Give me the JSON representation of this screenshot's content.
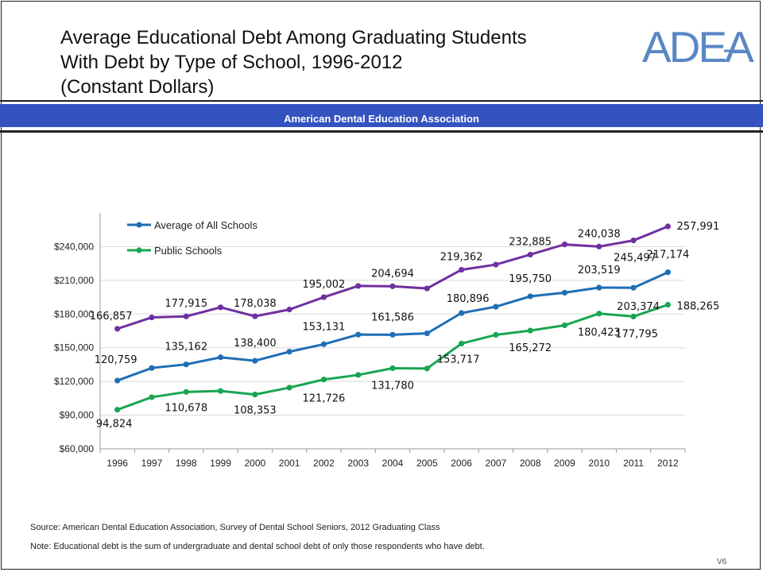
{
  "title_lines": [
    "Average Educational Debt Among Graduating Students",
    "With Debt by Type of School, 1996-2012",
    "(Constant Dollars)"
  ],
  "logo_text": "ADEA",
  "banner": "American Dental Education Association",
  "source": "Source: American Dental Education Association, Survey of Dental School Seniors, 2012 Graduating Class",
  "note": "Note: Educational debt is the sum of undergraduate and dental school debt of only those respondents who have debt.",
  "slide_code": "V6",
  "colors": {
    "banner": "#3553c0",
    "logo": "#5b87c4",
    "private": "#7030a0",
    "all": "#1f6eb5",
    "public": "#18a552"
  },
  "chart_data": {
    "type": "line",
    "x": [
      "1996",
      "1997",
      "1998",
      "1999",
      "2000",
      "2001",
      "2002",
      "2003",
      "2004",
      "2005",
      "2006",
      "2007",
      "2008",
      "2009",
      "2010",
      "2011",
      "2012"
    ],
    "ylim": [
      60000,
      270000
    ],
    "yticks": [
      "$60,000",
      "$90,000",
      "$120,000",
      "$150,000",
      "$180,000",
      "$210,000",
      "$240,000"
    ],
    "ytick_values": [
      60000,
      90000,
      120000,
      150000,
      180000,
      210000,
      240000
    ],
    "grid": true,
    "legend": "top-left",
    "series": [
      {
        "name": "",
        "color": "#7030a0",
        "values": [
          166857,
          177000,
          177915,
          186000,
          178038,
          184000,
          195002,
          205000,
          204694,
          202800,
          219362,
          224000,
          232885,
          242000,
          240038,
          245497,
          257991
        ],
        "labels": {
          "0": "166,857",
          "2": "177,915",
          "4": "178,038",
          "6": "195,002",
          "8": "204,694",
          "10": "219,362",
          "12": "232,885",
          "14": "240,038",
          "15": "245,497",
          "16": "257,991"
        }
      },
      {
        "name": "Average of All Schools",
        "color": "#1f6eb5",
        "values": [
          120759,
          132000,
          135162,
          141500,
          138400,
          146500,
          153131,
          161700,
          161586,
          162800,
          180896,
          186500,
          195750,
          199000,
          203519,
          203374,
          217174
        ],
        "labels": {
          "0": "120,759",
          "2": "135,162",
          "4": "138,400",
          "6": "153,131",
          "8": "161,586",
          "10": "180,896",
          "12": "195,750",
          "14": "203,519",
          "15": "203,374",
          "16": "217,174"
        }
      },
      {
        "name": "Public Schools",
        "color": "#18a552",
        "values": [
          94824,
          106000,
          110678,
          111500,
          108353,
          114500,
          121726,
          125800,
          131780,
          131500,
          153717,
          161500,
          165272,
          170000,
          180423,
          177795,
          188265
        ],
        "labels": {
          "0": "94,824",
          "2": "110,678",
          "4": "108,353",
          "6": "121,726",
          "8": "131,780",
          "10": "153,717",
          "12": "165,272",
          "14": "180,423",
          "15": "177,795",
          "16": "188,265"
        }
      }
    ]
  }
}
